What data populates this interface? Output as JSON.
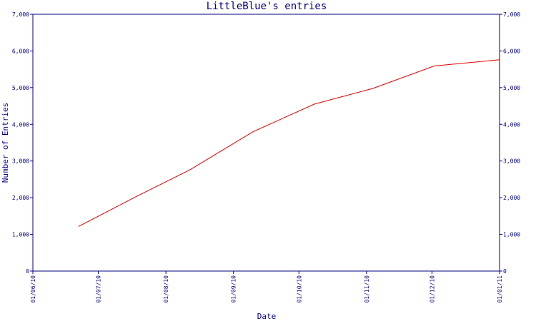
{
  "chart_data": {
    "type": "line",
    "title": "LittleBlue's entries",
    "xlabel": "Date",
    "ylabel": "Number of Entries",
    "ylim": [
      0,
      7000
    ],
    "xlim": [
      "2010-06-01",
      "2011-01-01"
    ],
    "y_ticks": [
      0,
      1000,
      2000,
      3000,
      4000,
      5000,
      6000,
      7000
    ],
    "y_tick_labels": [
      "0",
      "1,000",
      "2,000",
      "3,000",
      "4,000",
      "5,000",
      "6,000",
      "7,000"
    ],
    "x_ticks": [
      "2010-06-01",
      "2010-07-01",
      "2010-08-01",
      "2010-09-01",
      "2010-10-01",
      "2010-11-01",
      "2010-12-01",
      "2011-01-01"
    ],
    "x_tick_labels": [
      "01/06/10",
      "01/07/10",
      "01/08/10",
      "01/09/10",
      "01/10/10",
      "01/11/10",
      "01/12/10",
      "01/01/11"
    ],
    "grid": false,
    "line_color": "#e00000",
    "axis_color": "#000080",
    "series": [
      {
        "x": [
          "2010-06-22",
          "2010-07-19",
          "2010-08-12",
          "2010-09-10",
          "2010-10-08",
          "2010-11-04",
          "2010-12-02",
          "2011-01-01"
        ],
        "y": [
          1220,
          2050,
          2760,
          3800,
          4550,
          4980,
          5590,
          5760
        ]
      }
    ]
  }
}
